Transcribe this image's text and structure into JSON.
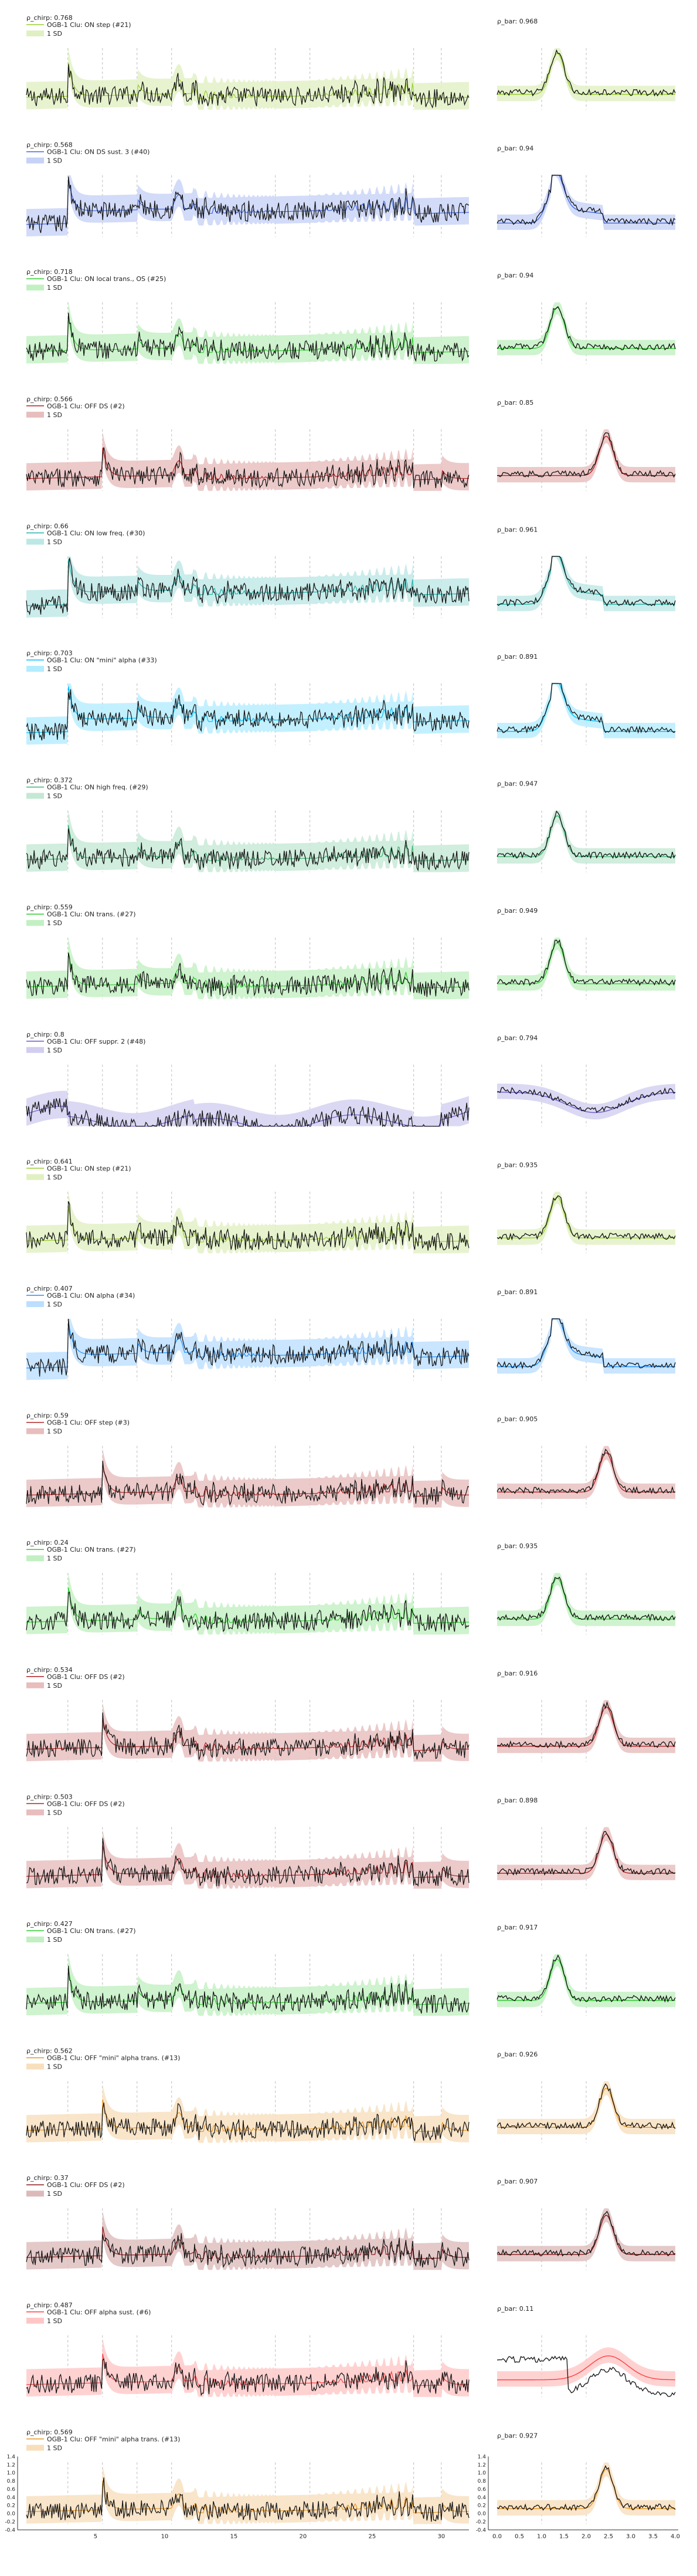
{
  "figure": {
    "chirp_symbol": "ρ_chirp",
    "bar_symbol": "ρ_bar",
    "sd_label": "1 SD",
    "stim_lines_chirp": [
      3,
      5.5,
      8,
      10.5,
      18,
      20.5,
      28,
      30
    ],
    "stim_lines_bar": [
      1,
      2
    ],
    "bottom_chirp_xticks": [
      "5",
      "10",
      "15",
      "20",
      "25",
      "30"
    ],
    "bottom_bar_xticks": [
      "0.0",
      "0.5",
      "1.0",
      "1.5",
      "2.0",
      "2.5",
      "3.0",
      "3.5",
      "4.0"
    ],
    "yticks": [
      "1.4",
      "1.2",
      "1.0",
      "0.8",
      "0.6",
      "0.4",
      "0.2",
      "0.0",
      "-0.2",
      "-0.4"
    ]
  },
  "chart_data": [
    {
      "type": "line",
      "title": "OGB-1 Clu: ON step (#21)",
      "rho_chirp": "0.768",
      "rho_bar": "0.968",
      "color": "#9acd32",
      "bar_profile": "on"
    },
    {
      "type": "line",
      "title": "OGB-1 Clu: ON DS sust. 3 (#40)",
      "rho_chirp": "0.568",
      "rho_bar": "0.94",
      "color": "#4169e1",
      "bar_profile": "on_sust"
    },
    {
      "type": "line",
      "title": "OGB-1 Clu: ON local trans., OS (#25)",
      "rho_chirp": "0.718",
      "rho_bar": "0.94",
      "color": "#32cd32",
      "bar_profile": "on"
    },
    {
      "type": "line",
      "title": "OGB-1 Clu: OFF DS (#2)",
      "rho_chirp": "0.566",
      "rho_bar": "0.85",
      "color": "#b22222",
      "bar_profile": "off"
    },
    {
      "type": "line",
      "title": "OGB-1 Clu: ON low freq. (#30)",
      "rho_chirp": "0.66",
      "rho_bar": "0.961",
      "color": "#20b2aa",
      "bar_profile": "on_sust"
    },
    {
      "type": "line",
      "title": "OGB-1 Clu: ON \"mini\" alpha (#33)",
      "rho_chirp": "0.703",
      "rho_bar": "0.891",
      "color": "#00bfff",
      "bar_profile": "on_sust"
    },
    {
      "type": "line",
      "title": "OGB-1 Clu: ON high freq. (#29)",
      "rho_chirp": "0.372",
      "rho_bar": "0.947",
      "color": "#3cb371",
      "bar_profile": "on"
    },
    {
      "type": "line",
      "title": "OGB-1 Clu: ON trans. (#27)",
      "rho_chirp": "0.559",
      "rho_bar": "0.949",
      "color": "#32cd32",
      "bar_profile": "on"
    },
    {
      "type": "line",
      "title": "OGB-1 Clu: OFF suppr. 2 (#48)",
      "rho_chirp": "0.8",
      "rho_bar": "0.794",
      "color": "#6a5acd",
      "bar_profile": "suppr"
    },
    {
      "type": "line",
      "title": "OGB-1 Clu: ON step (#21)",
      "rho_chirp": "0.641",
      "rho_bar": "0.935",
      "color": "#9acd32",
      "bar_profile": "on"
    },
    {
      "type": "line",
      "title": "OGB-1 Clu: ON alpha (#34)",
      "rho_chirp": "0.407",
      "rho_bar": "0.891",
      "color": "#1e90ff",
      "bar_profile": "on_sust"
    },
    {
      "type": "line",
      "title": "OGB-1 Clu: OFF step (#3)",
      "rho_chirp": "0.59",
      "rho_bar": "0.905",
      "color": "#b22222",
      "bar_profile": "off"
    },
    {
      "type": "line",
      "title": "OGB-1 Clu: ON trans. (#27)",
      "rho_chirp": "0.24",
      "rho_bar": "0.935",
      "color": "#32cd32",
      "bar_profile": "on"
    },
    {
      "type": "line",
      "title": "OGB-1 Clu: OFF DS (#2)",
      "rho_chirp": "0.534",
      "rho_bar": "0.916",
      "color": "#b22222",
      "bar_profile": "off"
    },
    {
      "type": "line",
      "title": "OGB-1 Clu: OFF DS (#2)",
      "rho_chirp": "0.503",
      "rho_bar": "0.898",
      "color": "#b22222",
      "bar_profile": "off"
    },
    {
      "type": "line",
      "title": "OGB-1 Clu: ON trans. (#27)",
      "rho_chirp": "0.427",
      "rho_bar": "0.917",
      "color": "#32cd32",
      "bar_profile": "on"
    },
    {
      "type": "line",
      "title": "OGB-1 Clu: OFF \"mini\" alpha trans. (#13)",
      "rho_chirp": "0.562",
      "rho_bar": "0.926",
      "color": "#e69520",
      "bar_profile": "off"
    },
    {
      "type": "line",
      "title": "OGB-1 Clu: OFF DS (#2)",
      "rho_chirp": "0.37",
      "rho_bar": "0.907",
      "color": "#8b1a1a",
      "bar_profile": "off"
    },
    {
      "type": "line",
      "title": "OGB-1 Clu: OFF alpha sust. (#6)",
      "rho_chirp": "0.487",
      "rho_bar": "0.11",
      "color": "#ff4040",
      "bar_profile": "mismatch"
    },
    {
      "type": "line",
      "title": "OGB-1 Clu: OFF \"mini\" alpha trans. (#13)",
      "rho_chirp": "0.569",
      "rho_bar": "0.927",
      "color": "#e69520",
      "bar_profile": "off"
    }
  ]
}
